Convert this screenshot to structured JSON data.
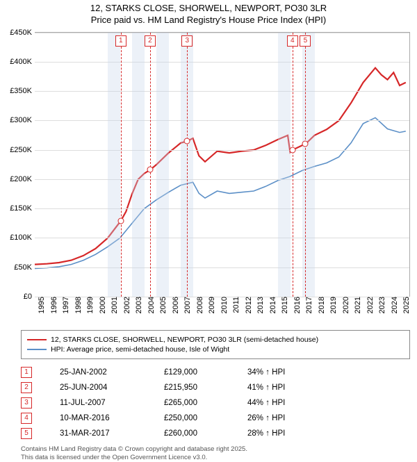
{
  "title": {
    "line1": "12, STARKS CLOSE, SHORWELL, NEWPORT, PO30 3LR",
    "line2": "Price paid vs. HM Land Registry's House Price Index (HPI)"
  },
  "chart": {
    "type": "line",
    "ylim": [
      0,
      450000
    ],
    "ytick_step": 50000,
    "yticks_labels": [
      "£0",
      "£50K",
      "£100K",
      "£150K",
      "£200K",
      "£250K",
      "£300K",
      "£350K",
      "£400K",
      "£450K"
    ],
    "x_start_year": 1995,
    "x_end_year": 2025.8,
    "xticks": [
      1995,
      1996,
      1997,
      1998,
      1999,
      2000,
      2001,
      2002,
      2003,
      2004,
      2005,
      2006,
      2007,
      2008,
      2009,
      2010,
      2011,
      2012,
      2013,
      2014,
      2015,
      2016,
      2017,
      2018,
      2019,
      2020,
      2021,
      2022,
      2023,
      2024,
      2025
    ],
    "band_years": [
      [
        2001,
        2002
      ],
      [
        2003,
        2004
      ],
      [
        2005,
        2006
      ],
      [
        2007,
        2008
      ],
      [
        2015,
        2016
      ],
      [
        2017,
        2018
      ]
    ],
    "colors": {
      "series_red": "#d62728",
      "series_blue": "#5b8fc7",
      "grid": "#dddddd",
      "band": "rgba(200,215,235,0.35)",
      "marker_border": "#d62728",
      "background": "#ffffff"
    },
    "line_width_red": 2.2,
    "line_width_blue": 1.6,
    "series_red": [
      [
        1995.0,
        55000
      ],
      [
        1996.0,
        56000
      ],
      [
        1997.0,
        58000
      ],
      [
        1998.0,
        62000
      ],
      [
        1999.0,
        70000
      ],
      [
        2000.0,
        82000
      ],
      [
        2001.0,
        100000
      ],
      [
        2002.07,
        129000
      ],
      [
        2002.5,
        145000
      ],
      [
        2003.0,
        175000
      ],
      [
        2003.5,
        200000
      ],
      [
        2004.0,
        210000
      ],
      [
        2004.48,
        215950
      ],
      [
        2005.0,
        225000
      ],
      [
        2006.0,
        245000
      ],
      [
        2007.0,
        262000
      ],
      [
        2007.53,
        265000
      ],
      [
        2008.0,
        270000
      ],
      [
        2008.5,
        240000
      ],
      [
        2009.0,
        230000
      ],
      [
        2010.0,
        248000
      ],
      [
        2011.0,
        245000
      ],
      [
        2012.0,
        248000
      ],
      [
        2013.0,
        250000
      ],
      [
        2014.0,
        258000
      ],
      [
        2015.0,
        268000
      ],
      [
        2015.8,
        275000
      ],
      [
        2016.0,
        246000
      ],
      [
        2016.19,
        250000
      ],
      [
        2017.0,
        258000
      ],
      [
        2017.25,
        260000
      ],
      [
        2018.0,
        275000
      ],
      [
        2019.0,
        285000
      ],
      [
        2020.0,
        300000
      ],
      [
        2021.0,
        330000
      ],
      [
        2022.0,
        365000
      ],
      [
        2023.0,
        390000
      ],
      [
        2023.5,
        378000
      ],
      [
        2024.0,
        370000
      ],
      [
        2024.5,
        382000
      ],
      [
        2025.0,
        360000
      ],
      [
        2025.5,
        365000
      ]
    ],
    "series_blue": [
      [
        1995.0,
        48000
      ],
      [
        1996.0,
        49000
      ],
      [
        1997.0,
        51000
      ],
      [
        1998.0,
        55000
      ],
      [
        1999.0,
        62000
      ],
      [
        2000.0,
        72000
      ],
      [
        2001.0,
        85000
      ],
      [
        2002.0,
        100000
      ],
      [
        2003.0,
        125000
      ],
      [
        2004.0,
        150000
      ],
      [
        2005.0,
        165000
      ],
      [
        2006.0,
        178000
      ],
      [
        2007.0,
        190000
      ],
      [
        2008.0,
        195000
      ],
      [
        2008.5,
        176000
      ],
      [
        2009.0,
        168000
      ],
      [
        2010.0,
        180000
      ],
      [
        2011.0,
        176000
      ],
      [
        2012.0,
        178000
      ],
      [
        2013.0,
        180000
      ],
      [
        2014.0,
        188000
      ],
      [
        2015.0,
        198000
      ],
      [
        2016.0,
        205000
      ],
      [
        2017.0,
        215000
      ],
      [
        2018.0,
        222000
      ],
      [
        2019.0,
        228000
      ],
      [
        2020.0,
        238000
      ],
      [
        2021.0,
        262000
      ],
      [
        2022.0,
        295000
      ],
      [
        2023.0,
        305000
      ],
      [
        2024.0,
        286000
      ],
      [
        2025.0,
        280000
      ],
      [
        2025.5,
        282000
      ]
    ],
    "sale_markers": [
      {
        "n": 1,
        "year": 2002.07,
        "price": 129000,
        "color": "#d62728"
      },
      {
        "n": 2,
        "year": 2004.48,
        "price": 215950,
        "color": "#d62728"
      },
      {
        "n": 3,
        "year": 2007.53,
        "price": 265000,
        "color": "#d62728"
      },
      {
        "n": 4,
        "year": 2016.19,
        "price": 250000,
        "color": "#d62728"
      },
      {
        "n": 5,
        "year": 2017.25,
        "price": 260000,
        "color": "#d62728"
      }
    ]
  },
  "legend": {
    "items": [
      {
        "label": "12, STARKS CLOSE, SHORWELL, NEWPORT, PO30 3LR (semi-detached house)",
        "color": "#d62728"
      },
      {
        "label": "HPI: Average price, semi-detached house, Isle of Wight",
        "color": "#5b8fc7"
      }
    ]
  },
  "sales_table": {
    "rows": [
      {
        "n": 1,
        "date": "25-JAN-2002",
        "price": "£129,000",
        "diff": "34% ↑ HPI",
        "color": "#d62728"
      },
      {
        "n": 2,
        "date": "25-JUN-2004",
        "price": "£215,950",
        "diff": "41% ↑ HPI",
        "color": "#d62728"
      },
      {
        "n": 3,
        "date": "11-JUL-2007",
        "price": "£265,000",
        "diff": "44% ↑ HPI",
        "color": "#d62728"
      },
      {
        "n": 4,
        "date": "10-MAR-2016",
        "price": "£250,000",
        "diff": "26% ↑ HPI",
        "color": "#d62728"
      },
      {
        "n": 5,
        "date": "31-MAR-2017",
        "price": "£260,000",
        "diff": "28% ↑ HPI",
        "color": "#d62728"
      }
    ]
  },
  "footer": {
    "line1": "Contains HM Land Registry data © Crown copyright and database right 2025.",
    "line2": "This data is licensed under the Open Government Licence v3.0."
  }
}
